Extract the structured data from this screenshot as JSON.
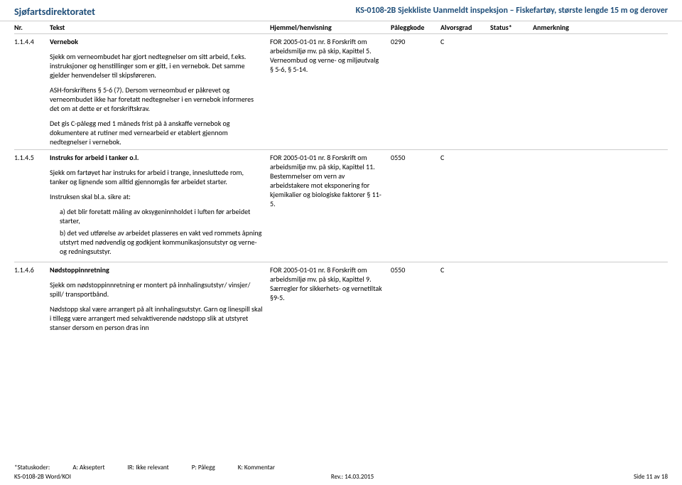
{
  "header": {
    "left": "Sjøfartsdirektoratet",
    "right": "KS-0108-2B Sjekkliste Uanmeldt inspeksjon – Fiskefartøy, største lengde 15 m og derover"
  },
  "columns": {
    "nr": "Nr.",
    "tekst": "Tekst",
    "hjemmel": "Hjemmel/henvisning",
    "kode": "Påleggkode",
    "alvor": "Alvorsgrad",
    "status": "Status*",
    "anm": "Anmerkning"
  },
  "rows": [
    {
      "nr": "1.1.4.4",
      "title": "Vernebok",
      "paras": [
        "Sjekk om verneombudet har gjort nedtegnelser om sitt arbeid, f.eks. instruksjoner og henstillinger som er gitt, i en vernebok. Det samme gjelder henvendelser til skipsføreren.",
        "ASH-forskriftens § 5-6 (7). Dersom verneombud er påkrevet og verneombudet ikke har foretatt nedtegnelser i en vernebok informeres det om at dette er et forskriftskrav.",
        "Det gis C-pålegg med 1 måneds frist på å anskaffe vernebok og dokumentere at rutiner med vernearbeid er etablert gjennom nedtegnelser i vernebok."
      ],
      "hjemmel": "FOR 2005-01-01 nr. 8 Forskrift om arbeidsmiljø mv. på skip, Kapittel 5. Verneombud og verne- og miljøutvalg § 5-6, § 5-14.",
      "kode": "0290",
      "alvor": "C"
    },
    {
      "nr": "1.1.4.5",
      "title": "Instruks for arbeid i tanker o.l.",
      "paras": [
        "Sjekk om fartøyet har instruks for arbeid i trange, innesluttede rom, tanker og lignende som alltid gjennomgås før arbeidet starter.",
        "Instruksen skal bl.a. sikre at:"
      ],
      "sublist": [
        "a)   det blir foretatt måling av oksygeninnholdet i luften før arbeidet starter,",
        "b)   det ved utførelse av arbeidet plasseres en vakt ved rommets åpning utstyrt med nødvendig og godkjent kommunikasjonsutstyr og verne- og redningsutstyr."
      ],
      "hjemmel": "FOR 2005-01-01 nr. 8 Forskrift om arbeidsmiljø mv. på skip, Kapittel 11. Bestemmelser om vern av arbeidstakere mot eksponering for kjemikalier og biologiske faktorer § 11-5.",
      "kode": "0550",
      "alvor": "C"
    },
    {
      "nr": "1.1.4.6",
      "title": "Nødstoppinnretning",
      "paras": [
        "Sjekk om nødstoppinnretning er montert på innhalingsutstyr/ vinsjer/ spill/ transportbånd.",
        "Nødstopp skal være arrangert på alt innhalingsutstyr. Garn og linespill skal i tillegg være arrangert med selvaktiverende nødstopp slik at utstyret stanser dersom en person dras inn"
      ],
      "hjemmel": "FOR 2005-01-01 nr. 8 Forskrift om arbeidsmiljø mv. på skip, Kapittel 9. Særregler for sikkerhets- og vernetiltak §9-5.",
      "kode": "0550",
      "alvor": "C"
    }
  ],
  "footer": {
    "status_label": "*Statuskoder:",
    "a": "A: Akseptert",
    "ir": "IR: Ikke relevant",
    "p": "P: Pålegg",
    "k": "K: Kommentar",
    "doc": "KS-0108-2B Word/KOI",
    "rev": "Rev.: 14.03.2015",
    "page": "Side 11 av 18"
  }
}
